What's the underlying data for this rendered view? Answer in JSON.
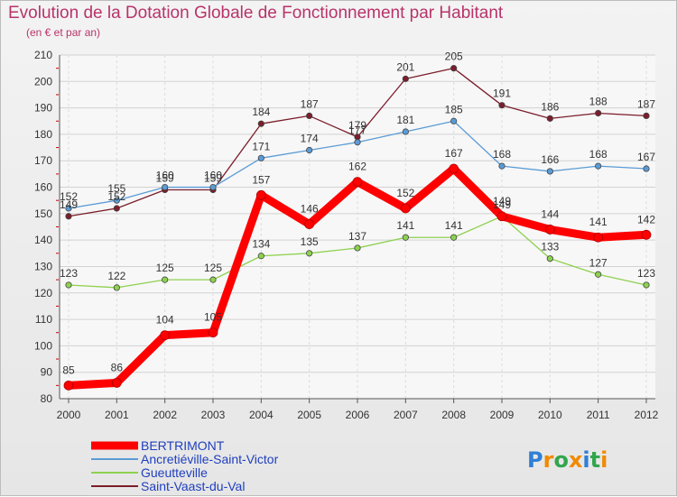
{
  "chart_data": {
    "type": "line",
    "title": "Evolution de la Dotation Globale de Fonctionnement par Habitant",
    "subtitle": "(en € et par an)",
    "xlabel": "",
    "ylabel": "",
    "ylim": [
      80,
      210
    ],
    "yticks": [
      80,
      90,
      100,
      110,
      120,
      130,
      140,
      150,
      160,
      170,
      180,
      190,
      200,
      210
    ],
    "categories": [
      "2000",
      "2001",
      "2002",
      "2003",
      "2004",
      "2005",
      "2006",
      "2007",
      "2008",
      "2009",
      "2010",
      "2011",
      "2012"
    ],
    "grid": true,
    "series": [
      {
        "name": "Saint-Vaast-du-Val",
        "color": "#7b1e2b",
        "values": [
          149,
          152,
          159,
          159,
          184,
          187,
          179,
          201,
          205,
          191,
          186,
          188,
          187
        ]
      },
      {
        "name": "Ancretiéville-Saint-Victor",
        "color": "#5b9bd5",
        "values": [
          152,
          155,
          160,
          160,
          171,
          174,
          177,
          181,
          185,
          168,
          166,
          168,
          167
        ]
      },
      {
        "name": "Gueutteville",
        "color": "#8ed14f",
        "values": [
          123,
          122,
          125,
          125,
          134,
          135,
          137,
          141,
          141,
          149,
          133,
          127,
          123
        ]
      },
      {
        "name": "BERTRIMONT",
        "color": "#ff0000",
        "values": [
          85,
          86,
          104,
          105,
          157,
          146,
          162,
          152,
          167,
          149,
          144,
          141,
          142
        ]
      }
    ],
    "legend_order": [
      "BERTRIMONT",
      "Ancretiéville-Saint-Victor",
      "Gueutteville",
      "Saint-Vaast-du-Val"
    ],
    "legend_colors": [
      "#ff0000",
      "#5b9bd5",
      "#8ed14f",
      "#7b1e2b"
    ],
    "legend_text_color": "#1f3fbf"
  },
  "brand": {
    "letters": [
      "P",
      "r",
      "o",
      "x",
      "i",
      "t",
      "i"
    ],
    "colors": [
      "#2e7fd6",
      "#f08a00",
      "#33a64d",
      "#f08a00",
      "#2e7fd6",
      "#33a64d",
      "#f08a00"
    ]
  }
}
